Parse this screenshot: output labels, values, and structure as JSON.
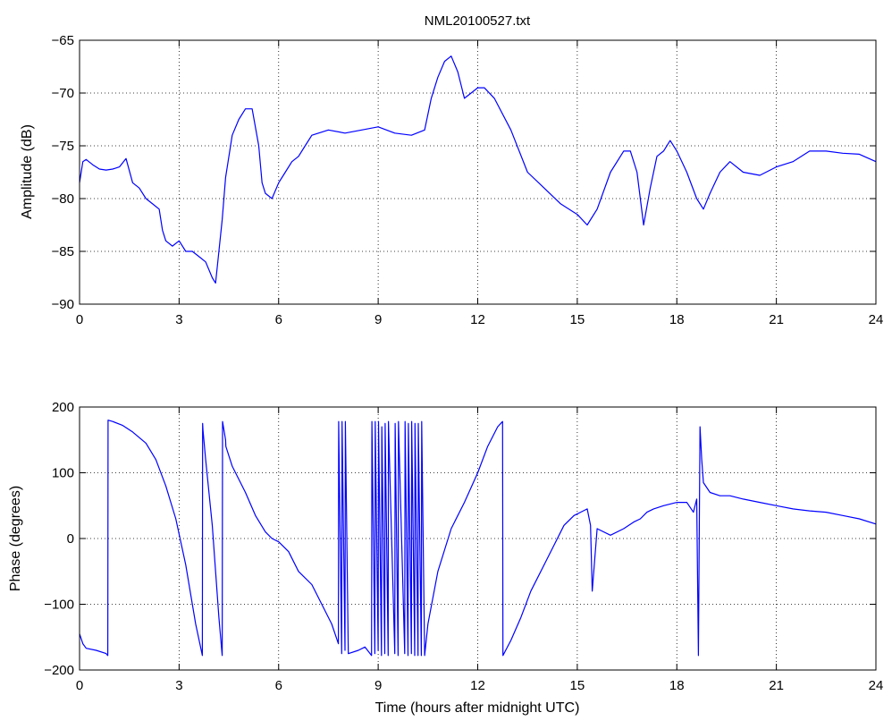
{
  "chart_data": [
    {
      "type": "line",
      "title": "NML20100527.txt",
      "xlabel": "",
      "ylabel": "Amplitude (dB)",
      "xlim": [
        0,
        24
      ],
      "ylim": [
        -90,
        -65
      ],
      "xticks": [
        0,
        3,
        6,
        9,
        12,
        15,
        18,
        21,
        24
      ],
      "yticks": [
        -65,
        -70,
        -75,
        -80,
        -85,
        -90
      ],
      "grid": true,
      "color": "#0000ff",
      "series": [
        {
          "x": [
            0,
            0.1,
            0.2,
            0.4,
            0.6,
            0.8,
            1.0,
            1.2,
            1.4,
            1.6,
            1.8,
            2.0,
            2.2,
            2.4,
            2.5,
            2.6,
            2.8,
            3.0,
            3.2,
            3.4,
            3.6,
            3.8,
            4.0,
            4.1,
            4.2,
            4.3,
            4.4,
            4.5,
            4.6,
            4.8,
            5.0,
            5.2,
            5.4,
            5.5,
            5.6,
            5.8,
            6.0,
            6.2,
            6.4,
            6.6,
            6.8,
            7.0,
            7.5,
            8.0,
            8.5,
            9.0,
            9.5,
            10.0,
            10.4,
            10.6,
            10.8,
            11.0,
            11.2,
            11.4,
            11.6,
            11.8,
            12.0,
            12.2,
            12.5,
            13.0,
            13.5,
            14.0,
            14.5,
            15.0,
            15.3,
            15.6,
            16.0,
            16.4,
            16.6,
            16.8,
            17.0,
            17.2,
            17.4,
            17.6,
            17.8,
            18.0,
            18.3,
            18.6,
            18.8,
            19.0,
            19.3,
            19.6,
            20.0,
            20.5,
            21.0,
            21.5,
            22.0,
            22.5,
            23.0,
            23.5,
            24.0
          ],
          "y": [
            -78.5,
            -76.5,
            -76.3,
            -76.8,
            -77.2,
            -77.3,
            -77.2,
            -77.0,
            -76.2,
            -78.5,
            -79.0,
            -80.0,
            -80.5,
            -81.0,
            -83.0,
            -84.0,
            -84.5,
            -84.0,
            -85.0,
            -85.0,
            -85.5,
            -86.0,
            -87.5,
            -88.0,
            -85.0,
            -82.0,
            -78.0,
            -76.0,
            -74.0,
            -72.5,
            -71.5,
            -71.5,
            -75.0,
            -78.5,
            -79.5,
            -80.0,
            -78.5,
            -77.5,
            -76.5,
            -76.0,
            -75.0,
            -74.0,
            -73.5,
            -73.8,
            -73.5,
            -73.2,
            -73.8,
            -74.0,
            -73.5,
            -70.5,
            -68.5,
            -67.0,
            -66.5,
            -68.0,
            -70.5,
            -70.0,
            -69.5,
            -69.5,
            -70.5,
            -73.5,
            -77.5,
            -79.0,
            -80.5,
            -81.5,
            -82.5,
            -81.0,
            -77.5,
            -75.5,
            -75.5,
            -77.5,
            -82.5,
            -79.0,
            -76.0,
            -75.5,
            -74.5,
            -75.5,
            -77.5,
            -80.0,
            -81.0,
            -79.5,
            -77.5,
            -76.5,
            -77.5,
            -77.8,
            -77.0,
            -76.5,
            -75.5,
            -75.5,
            -75.7,
            -75.8,
            -76.5
          ]
        }
      ]
    },
    {
      "type": "line",
      "title": "",
      "xlabel": "Time (hours after midnight UTC)",
      "ylabel": "Phase (degrees)",
      "xlim": [
        0,
        24
      ],
      "ylim": [
        -200,
        200
      ],
      "xticks": [
        0,
        3,
        6,
        9,
        12,
        15,
        18,
        21,
        24
      ],
      "yticks": [
        200,
        100,
        0,
        -100,
        -200
      ],
      "grid": true,
      "color": "#0000ff",
      "series": [
        {
          "x": [
            0,
            0.1,
            0.2,
            0.5,
            0.8,
            0.85,
            0.86,
            1.0,
            1.3,
            1.6,
            2.0,
            2.3,
            2.6,
            2.9,
            3.2,
            3.5,
            3.7,
            3.71,
            3.72,
            3.8,
            4.0,
            4.2,
            4.3,
            4.31,
            4.4,
            4.41,
            4.6,
            5.0,
            5.3,
            5.6,
            5.8,
            6.0,
            6.3,
            6.6,
            7.0,
            7.3,
            7.6,
            7.8,
            7.81,
            7.9,
            7.91,
            8.0,
            8.01,
            8.1,
            8.11,
            8.4,
            8.6,
            8.8,
            8.81,
            8.9,
            8.91,
            9.0,
            9.01,
            9.1,
            9.11,
            9.2,
            9.21,
            9.3,
            9.31,
            9.5,
            9.51,
            9.6,
            9.61,
            9.8,
            9.81,
            9.9,
            9.91,
            10.0,
            10.01,
            10.1,
            10.11,
            10.2,
            10.21,
            10.3,
            10.31,
            10.4,
            10.5,
            10.8,
            11.2,
            11.6,
            12.0,
            12.3,
            12.6,
            12.75,
            12.76,
            13.0,
            13.3,
            13.6,
            14.0,
            14.3,
            14.6,
            14.9,
            15.1,
            15.3,
            15.4,
            15.45,
            15.6,
            16.0,
            16.4,
            16.7,
            16.9,
            17.1,
            17.3,
            17.6,
            18.0,
            18.3,
            18.5,
            18.6,
            18.65,
            18.7,
            18.75,
            18.8,
            19.0,
            19.3,
            19.6,
            20.0,
            20.5,
            21.0,
            21.5,
            22.0,
            22.5,
            23.0,
            23.5,
            24.0
          ],
          "y": [
            -145,
            -160,
            -167,
            -170,
            -175,
            -178,
            180,
            178,
            172,
            162,
            145,
            120,
            80,
            30,
            -40,
            -130,
            -178,
            175,
            165,
            120,
            20,
            -120,
            -178,
            178,
            150,
            140,
            110,
            70,
            35,
            10,
            0,
            -5,
            -20,
            -50,
            -70,
            -100,
            -130,
            -160,
            178,
            -175,
            178,
            -170,
            178,
            -175,
            -175,
            -170,
            -165,
            -178,
            178,
            -175,
            178,
            -170,
            178,
            -178,
            170,
            -175,
            175,
            -178,
            178,
            -175,
            175,
            -178,
            178,
            -175,
            178,
            -178,
            175,
            -175,
            178,
            -178,
            175,
            -178,
            175,
            -178,
            178,
            -178,
            -130,
            -50,
            15,
            55,
            100,
            140,
            170,
            178,
            -178,
            -155,
            -120,
            -80,
            -40,
            -10,
            20,
            35,
            40,
            45,
            20,
            -80,
            15,
            5,
            15,
            25,
            30,
            40,
            45,
            50,
            55,
            55,
            40,
            60,
            -178,
            170,
            120,
            85,
            70,
            65,
            65,
            60,
            55,
            50,
            45,
            42,
            40,
            35,
            30,
            22
          ]
        }
      ]
    }
  ]
}
